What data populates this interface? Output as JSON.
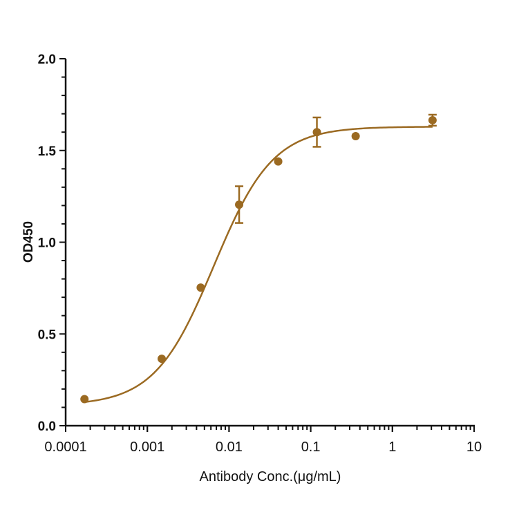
{
  "chart_data": {
    "type": "scatter",
    "title": "",
    "xlabel": "Antibody Conc.(μg/mL)",
    "ylabel": "OD450",
    "xscale": "log",
    "xlim": [
      0.0001,
      10
    ],
    "ylim": [
      0,
      2.0
    ],
    "x_ticks": [
      "0.0001",
      "0.001",
      "0.01",
      "0.1",
      "1",
      "10"
    ],
    "y_ticks": [
      "0.0",
      "0.5",
      "1.0",
      "1.5",
      "2.0"
    ],
    "grid": false,
    "legend": null,
    "color": "#9B6A22",
    "series": [
      {
        "name": "OD450",
        "x": [
          0.00017,
          0.0015,
          0.0045,
          0.0133,
          0.04,
          0.119,
          0.355,
          3.1
        ],
        "y": [
          0.145,
          0.365,
          0.753,
          1.205,
          1.44,
          1.6,
          1.578,
          1.665
        ],
        "error": [
          0,
          0,
          0,
          0.1,
          0,
          0.08,
          0,
          0.03
        ]
      }
    ],
    "fit": {
      "type": "4PL",
      "bottom": 0.11,
      "top": 1.63,
      "ec50": 0.0065,
      "hill": 1.2
    }
  }
}
